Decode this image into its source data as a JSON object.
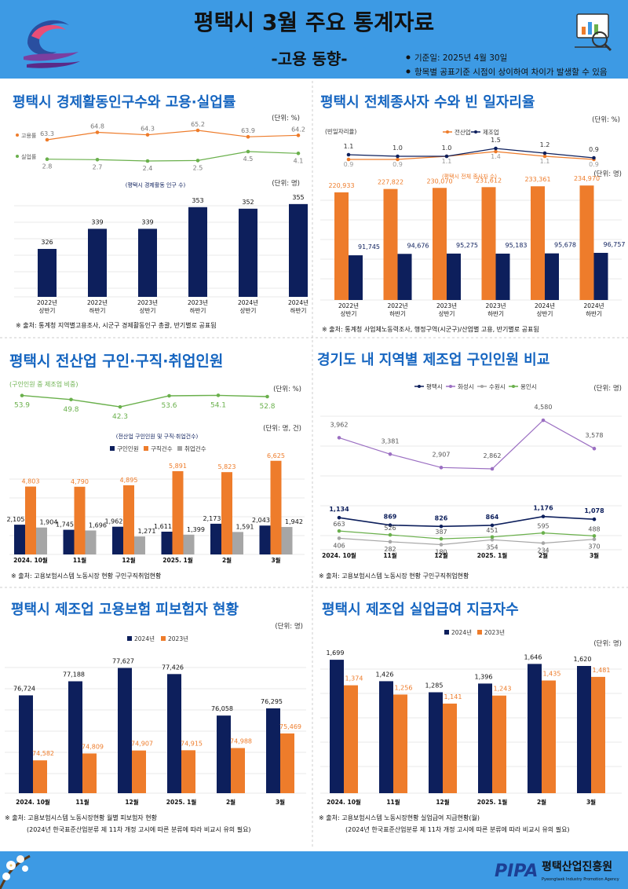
{
  "header": {
    "title": "평택시 3월 주요 통계자료",
    "subtitle": "-고용 동향-",
    "notes": [
      "기준일: 2025년 4월 30일",
      "항목별 공표기준 시점이 상이하여 차이가 발생할 수 있음"
    ]
  },
  "footer": {
    "org_name": "평택산업진흥원",
    "org_name_en": "Pyeongtaek Industry Promotion Agency",
    "logo_text": "PIPA"
  },
  "colors": {
    "header_bg": "#3d9ae4",
    "title": "#1565c0",
    "navy": "#0d1f5c",
    "orange": "#ee7c2b",
    "gray": "#a6a6a6",
    "green": "#6ab04c",
    "purple": "#9b6fc2"
  },
  "panels": {
    "p1": {
      "title": "평택시 경제활동인구수와 고용·실업률",
      "rate_unit": "(단위: %)",
      "bar_unit": "(단위: 명)",
      "bar_caption": "(평택시 경제활동 인구 수)",
      "source": "※ 출처: 통계청 지역별고용조사, 시군구 경제활동인구 총괄, 반기별로 공표됨",
      "chart_data": {
        "type": "bar",
        "categories": [
          [
            "2022년",
            "상반기"
          ],
          [
            "2022년",
            "하반기"
          ],
          [
            "2023년",
            "상반기"
          ],
          [
            "2023년",
            "하반기"
          ],
          [
            "2024년",
            "상반기"
          ],
          [
            "2024년",
            "하반기"
          ]
        ],
        "values": [
          326,
          339,
          339,
          353,
          352,
          355
        ],
        "value_labels": [
          "326",
          "339",
          "339",
          "353",
          "352",
          "355"
        ],
        "ylim": [
          295,
          360
        ],
        "lines": [
          {
            "name": "고용률",
            "values": [
              63.3,
              64.8,
              64.3,
              65.2,
              63.9,
              64.2
            ],
            "labels": [
              "63.3",
              "64.8",
              "64.3",
              "65.2",
              "63.9",
              "64.2"
            ]
          },
          {
            "name": "실업률",
            "values": [
              2.8,
              2.7,
              2.4,
              2.5,
              4.5,
              4.1
            ],
            "labels": [
              "2.8",
              "2.7",
              "2.4",
              "2.5",
              "4.5",
              "4.1"
            ]
          }
        ]
      }
    },
    "p2": {
      "title": "평택시 전체종사자 수와 빈 일자리율",
      "rate_unit": "(단위: %)",
      "bar_unit": "(단위: 명)",
      "bar_caption": "(평택시 전체 종사자 수)",
      "left_label": "(빈일자리율)",
      "source": "※ 출처: 통계청 사업체노동력조사, 행정구역(시군구)/산업별 고용, 반기별로 공표됨",
      "chart_data": {
        "type": "bar",
        "categories": [
          [
            "2022년",
            "상반기"
          ],
          [
            "2022년",
            "하반기"
          ],
          [
            "2023년",
            "상반기"
          ],
          [
            "2023년",
            "하반기"
          ],
          [
            "2024년",
            "상반기"
          ],
          [
            "2024년",
            "하반기"
          ]
        ],
        "series": [
          {
            "name": "전산업",
            "values": [
              220933,
              227822,
              230070,
              231612,
              233361,
              234970
            ],
            "labels": [
              "220,933",
              "227,822",
              "230,070",
              "231,612",
              "233,361",
              "234,970"
            ]
          },
          {
            "name": "제조업",
            "values": [
              91745,
              94676,
              95275,
              95183,
              95678,
              96757
            ],
            "labels": [
              "91,745",
              "94,676",
              "95,275",
              "95,183",
              "95,678",
              "96,757"
            ]
          }
        ],
        "ylim": [
          0,
          245000
        ],
        "lines": [
          {
            "name": "전산업",
            "values": [
              0.9,
              0.9,
              1.1,
              1.4,
              1.1,
              0.9
            ],
            "labels": [
              "0.9",
              "0.9",
              "1.1",
              "1.4",
              "1.1",
              "0.9"
            ]
          },
          {
            "name": "제조업",
            "values": [
              1.1,
              1.0,
              1.0,
              1.5,
              1.2,
              0.9
            ],
            "labels": [
              "1.1",
              "1.0",
              "1.0",
              "1.5",
              "1.2",
              "0.9"
            ]
          }
        ]
      }
    },
    "p3": {
      "title": "평택시 전산업 구인·구직·취업인원",
      "ratio_label": "(구인인원 중 제조업 비중)",
      "rate_unit": "(단위: %)",
      "bar_caption": "(전산업 구인인원 및 구직·취업건수)",
      "bar_unit": "(단위: 명, 건)",
      "source": "※ 출처: 고용보험시스템 노동시장 현황 구인구직취업현황",
      "chart_data": {
        "type": "bar",
        "categories": [
          "2024. 10월",
          "11월",
          "12월",
          "2025. 1월",
          "2월",
          "3월"
        ],
        "series": [
          {
            "name": "구인인원",
            "values": [
              2105,
              1745,
              1962,
              1611,
              2173,
              2043
            ],
            "labels": [
              "2,105",
              "1,745",
              "1,962",
              "1,611",
              "2,173",
              "2,043"
            ]
          },
          {
            "name": "구직건수",
            "values": [
              4803,
              4790,
              4895,
              5891,
              5823,
              6625
            ],
            "labels": [
              "4,803",
              "4,790",
              "4,895",
              "5,891",
              "5,823",
              "6,625"
            ]
          },
          {
            "name": "취업건수",
            "values": [
              1904,
              1696,
              1271,
              1399,
              1591,
              1942
            ],
            "labels": [
              "1,904",
              "1,696",
              "1,271",
              "1,399",
              "1,591",
              "1,942"
            ]
          }
        ],
        "ylim": [
          0,
          7000
        ],
        "lines": [
          {
            "name": "구인인원 중 제조업 비중",
            "values": [
              53.9,
              49.8,
              42.3,
              53.6,
              54.1,
              52.8
            ],
            "labels": [
              "53.9",
              "49.8",
              "42.3",
              "53.6",
              "54.1",
              "52.8"
            ]
          }
        ]
      }
    },
    "p4": {
      "title": "경기도 내 지역별 제조업 구인인원 비교",
      "unit": "(단위: 명)",
      "source": "※ 출처: 고용보험시스템 노동시장 현황 구인구직취업현황",
      "chart_data": {
        "type": "line",
        "categories": [
          "2024. 10월",
          "11월",
          "12월",
          "2025. 1월",
          "2월",
          "3월"
        ],
        "ylim": [
          0,
          5000
        ],
        "series": [
          {
            "name": "평택시",
            "values": [
              1134,
              869,
              826,
              864,
              1176,
              1078
            ],
            "labels": [
              "1,134",
              "869",
              "826",
              "864",
              "1,176",
              "1,078"
            ]
          },
          {
            "name": "화성시",
            "values": [
              3962,
              3381,
              2907,
              2862,
              4580,
              3578
            ],
            "labels": [
              "3,962",
              "3,381",
              "2,907",
              "2,862",
              "4,580",
              "3,578"
            ]
          },
          {
            "name": "수원시",
            "values": [
              406,
              282,
              180,
              354,
              234,
              370
            ],
            "labels": [
              "406",
              "282",
              "180",
              "354",
              "234",
              "370"
            ]
          },
          {
            "name": "용인시",
            "values": [
              663,
              526,
              387,
              451,
              595,
              488
            ],
            "labels": [
              "663",
              "526",
              "387",
              "451",
              "595",
              "488"
            ]
          }
        ]
      }
    },
    "p5": {
      "title": "평택시 제조업 고용보험 피보험자 현황",
      "unit": "(단위: 명)",
      "source": "※ 출처: 고용보험시스템 노동시장현황 월별 피보험자 현황",
      "note": "(2024년 한국표준산업분류 제 11차 개정 고시에 따른 분류에 따라 비교시 유의 필요)",
      "chart_data": {
        "type": "bar",
        "categories": [
          "2024. 10월",
          "11월",
          "12월",
          "2025. 1월",
          "2월",
          "3월"
        ],
        "series": [
          {
            "name": "2024년",
            "values": [
              76724,
              77188,
              77627,
              77426,
              76058,
              76295
            ],
            "labels": [
              "76,724",
              "77,188",
              "77,627",
              "77,426",
              "76,058",
              "76,295"
            ]
          },
          {
            "name": "2023년",
            "values": [
              74582,
              74809,
              74907,
              74915,
              74988,
              75469
            ],
            "labels": [
              "74,582",
              "74,809",
              "74,907",
              "74,915",
              "74,988",
              "75,469"
            ]
          }
        ],
        "ylim": [
          73500,
          77900
        ]
      }
    },
    "p6": {
      "title": "평택시 제조업 실업급여 지급자수",
      "unit": "(단위: 명)",
      "source": "※ 출처: 고용보험시스템 노동시장현황 실업급여 지급현황(월)",
      "note": "(2024년 한국표준산업분류 제 11차 개정 고시에 따른 분류에 따라 비교시 유의 필요)",
      "chart_data": {
        "type": "bar",
        "categories": [
          "2024. 10월",
          "11월",
          "12월",
          "2025. 1월",
          "2월",
          "3월"
        ],
        "series": [
          {
            "name": "2024년",
            "values": [
              1699,
              1426,
              1285,
              1396,
              1646,
              1620
            ],
            "labels": [
              "1,699",
              "1,426",
              "1,285",
              "1,396",
              "1,646",
              "1,620"
            ]
          },
          {
            "name": "2023년",
            "values": [
              1374,
              1256,
              1141,
              1243,
              1435,
              1481
            ],
            "labels": [
              "1,374",
              "1,256",
              "1,141",
              "1,243",
              "1,435",
              "1,481"
            ]
          }
        ],
        "ylim": [
          0,
          1800
        ]
      }
    }
  }
}
